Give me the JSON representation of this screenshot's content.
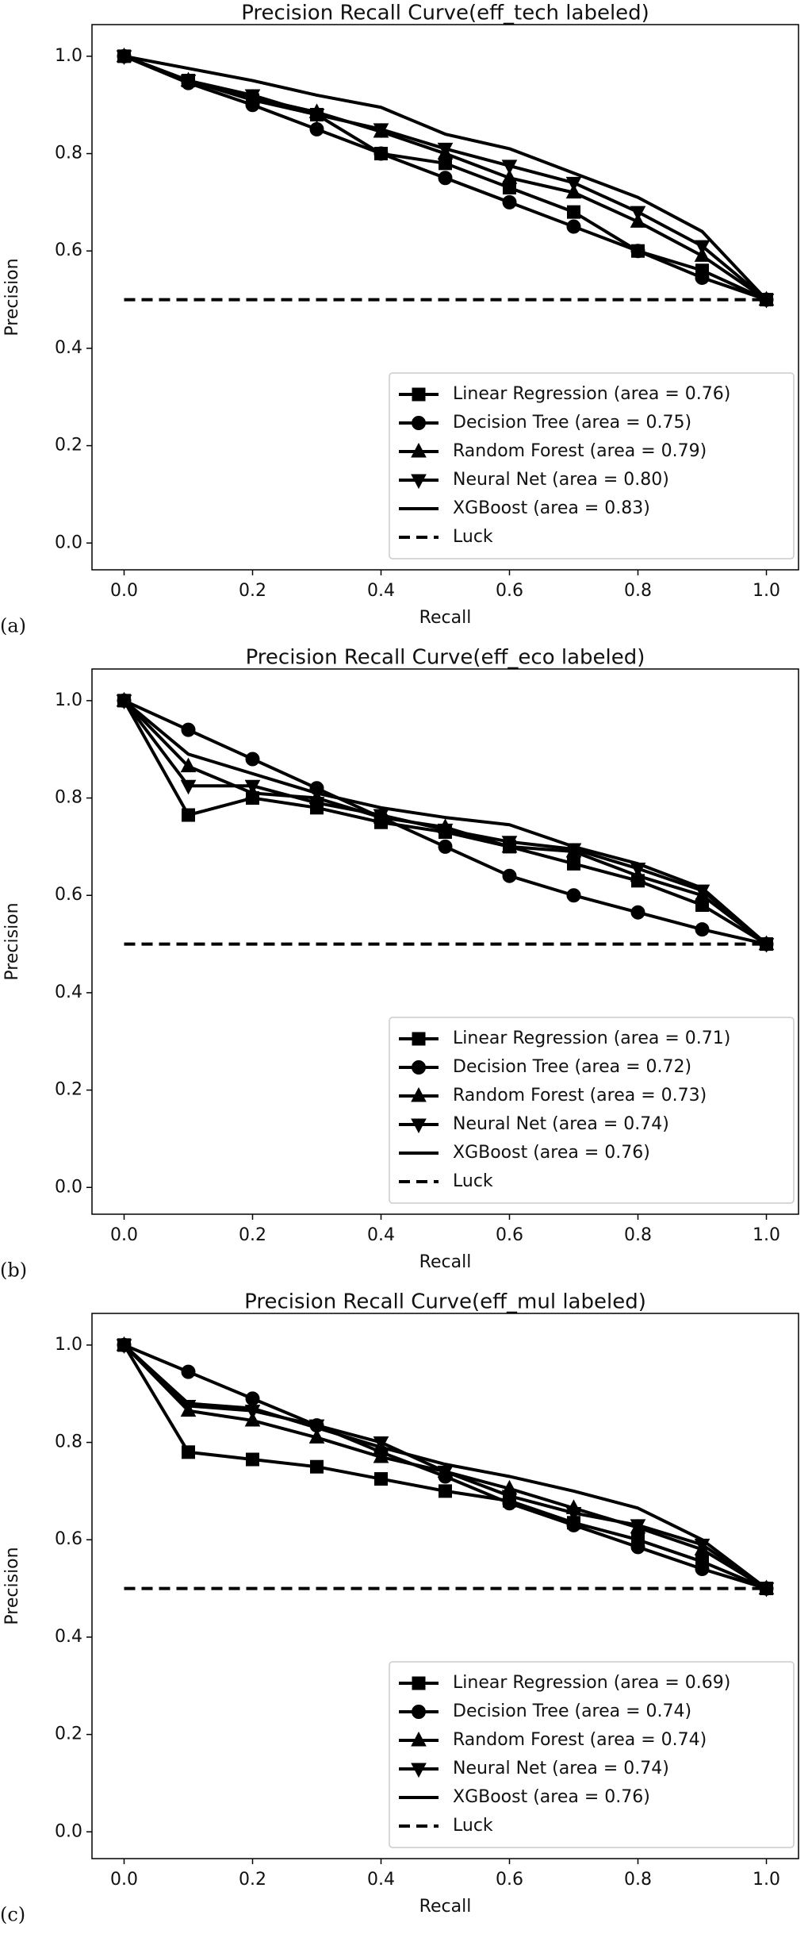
{
  "chart_data": [
    {
      "type": "line",
      "title": "Precision Recall Curve(eff_tech labeled)",
      "xlabel": "Recall",
      "ylabel": "Precision",
      "panel_label": "(a)",
      "x": [
        0,
        0.1,
        0.2,
        0.3,
        0.4,
        0.5,
        0.6,
        0.7,
        0.8,
        0.9,
        1.0
      ],
      "xlim": [
        -0.05,
        1.05
      ],
      "ylim": [
        -0.055,
        1.065
      ],
      "xticks": [
        {
          "value": 0,
          "label": "0.0"
        },
        0.2,
        0.4,
        0.6,
        0.8,
        {
          "value": 1,
          "label": "1.0"
        }
      ],
      "yticks": [
        {
          "value": 0,
          "label": "0.0"
        },
        0.2,
        0.4,
        0.6,
        0.8,
        {
          "value": 1,
          "label": "1.0"
        }
      ],
      "legend": "lower right",
      "series": [
        {
          "name": "Linear Regression (area = 0.76)",
          "color": "#000000",
          "marker": "square",
          "values": [
            1.0,
            0.95,
            0.91,
            0.88,
            0.8,
            0.78,
            0.73,
            0.68,
            0.6,
            0.56,
            0.5
          ]
        },
        {
          "name": "Decision Tree (area = 0.75)",
          "color": "#000000",
          "marker": "circle",
          "values": [
            1.0,
            0.945,
            0.9,
            0.85,
            0.8,
            0.75,
            0.7,
            0.65,
            0.6,
            0.545,
            0.5
          ]
        },
        {
          "name": "Random Forest (area = 0.79)",
          "color": "#000000",
          "marker": "triangle-up",
          "values": [
            1.0,
            0.95,
            0.915,
            0.885,
            0.845,
            0.8,
            0.75,
            0.72,
            0.66,
            0.59,
            0.5
          ]
        },
        {
          "name": "Neural Net (area = 0.80)",
          "color": "#000000",
          "marker": "triangle-down",
          "values": [
            1.0,
            0.95,
            0.92,
            0.88,
            0.85,
            0.81,
            0.775,
            0.74,
            0.68,
            0.61,
            0.5
          ]
        },
        {
          "name": "XGBoost (area = 0.83)",
          "color": "#000000",
          "values": [
            1.0,
            0.975,
            0.95,
            0.92,
            0.895,
            0.84,
            0.81,
            0.76,
            0.71,
            0.64,
            0.5
          ]
        },
        {
          "name": "Luck",
          "color": "#000000",
          "linestyle": "dashed",
          "values": [
            0.5,
            0.5,
            0.5,
            0.5,
            0.5,
            0.5,
            0.5,
            0.5,
            0.5,
            0.5,
            0.5
          ]
        }
      ]
    },
    {
      "type": "line",
      "title": "Precision Recall Curve(eff_eco labeled)",
      "xlabel": "Recall",
      "ylabel": "Precision",
      "panel_label": "(b)",
      "x": [
        0,
        0.1,
        0.2,
        0.3,
        0.4,
        0.5,
        0.6,
        0.7,
        0.8,
        0.9,
        1.0
      ],
      "xlim": [
        -0.05,
        1.05
      ],
      "ylim": [
        -0.055,
        1.065
      ],
      "xticks": [
        {
          "value": 0,
          "label": "0.0"
        },
        0.2,
        0.4,
        0.6,
        0.8,
        {
          "value": 1,
          "label": "1.0"
        }
      ],
      "yticks": [
        {
          "value": 0,
          "label": "0.0"
        },
        0.2,
        0.4,
        0.6,
        0.8,
        {
          "value": 1,
          "label": "1.0"
        }
      ],
      "legend": "lower right",
      "series": [
        {
          "name": "Linear Regression (area = 0.71)",
          "color": "#000000",
          "marker": "square",
          "values": [
            1.0,
            0.765,
            0.8,
            0.78,
            0.75,
            0.73,
            0.7,
            0.665,
            0.63,
            0.58,
            0.5
          ]
        },
        {
          "name": "Decision Tree (area = 0.72)",
          "color": "#000000",
          "marker": "circle",
          "values": [
            1.0,
            0.94,
            0.88,
            0.82,
            0.76,
            0.7,
            0.64,
            0.6,
            0.565,
            0.53,
            0.5
          ]
        },
        {
          "name": "Random Forest (area = 0.73)",
          "color": "#000000",
          "marker": "triangle-up",
          "values": [
            1.0,
            0.865,
            0.81,
            0.8,
            0.76,
            0.74,
            0.7,
            0.69,
            0.64,
            0.6,
            0.5
          ]
        },
        {
          "name": "Neural Net (area = 0.74)",
          "color": "#000000",
          "marker": "triangle-down",
          "values": [
            1.0,
            0.825,
            0.825,
            0.79,
            0.765,
            0.735,
            0.71,
            0.695,
            0.655,
            0.61,
            0.5
          ]
        },
        {
          "name": "XGBoost (area = 0.76)",
          "color": "#000000",
          "values": [
            1.0,
            0.89,
            0.85,
            0.81,
            0.78,
            0.76,
            0.745,
            0.7,
            0.665,
            0.615,
            0.5
          ]
        },
        {
          "name": "Luck",
          "color": "#000000",
          "linestyle": "dashed",
          "values": [
            0.5,
            0.5,
            0.5,
            0.5,
            0.5,
            0.5,
            0.5,
            0.5,
            0.5,
            0.5,
            0.5
          ]
        }
      ]
    },
    {
      "type": "line",
      "title": "Precision Recall Curve(eff_mul labeled)",
      "xlabel": "Recall",
      "ylabel": "Precision",
      "panel_label": "(c)",
      "x": [
        0,
        0.1,
        0.2,
        0.3,
        0.4,
        0.5,
        0.6,
        0.7,
        0.8,
        0.9,
        1.0
      ],
      "xlim": [
        -0.05,
        1.05
      ],
      "ylim": [
        -0.055,
        1.065
      ],
      "xticks": [
        {
          "value": 0,
          "label": "0.0"
        },
        0.2,
        0.4,
        0.6,
        0.8,
        {
          "value": 1,
          "label": "1.0"
        }
      ],
      "yticks": [
        {
          "value": 0,
          "label": "0.0"
        },
        0.2,
        0.4,
        0.6,
        0.8,
        {
          "value": 1,
          "label": "1.0"
        }
      ],
      "legend": "lower right",
      "series": [
        {
          "name": "Linear Regression (area = 0.69)",
          "color": "#000000",
          "marker": "square",
          "values": [
            1.0,
            0.78,
            0.765,
            0.75,
            0.725,
            0.7,
            0.68,
            0.635,
            0.6,
            0.555,
            0.5
          ]
        },
        {
          "name": "Decision Tree (area = 0.74)",
          "color": "#000000",
          "marker": "circle",
          "values": [
            1.0,
            0.945,
            0.89,
            0.835,
            0.78,
            0.73,
            0.675,
            0.63,
            0.585,
            0.54,
            0.5
          ]
        },
        {
          "name": "Random Forest (area = 0.74)",
          "color": "#000000",
          "marker": "triangle-up",
          "values": [
            1.0,
            0.865,
            0.845,
            0.81,
            0.77,
            0.74,
            0.705,
            0.665,
            0.625,
            0.58,
            0.5
          ]
        },
        {
          "name": "Neural Net (area = 0.74)",
          "color": "#000000",
          "marker": "triangle-down",
          "values": [
            1.0,
            0.875,
            0.865,
            0.835,
            0.8,
            0.74,
            0.69,
            0.655,
            0.63,
            0.59,
            0.5
          ]
        },
        {
          "name": "XGBoost (area = 0.76)",
          "color": "#000000",
          "values": [
            1.0,
            0.88,
            0.87,
            0.83,
            0.79,
            0.755,
            0.73,
            0.7,
            0.665,
            0.6,
            0.5
          ]
        },
        {
          "name": "Luck",
          "color": "#000000",
          "linestyle": "dashed",
          "values": [
            0.5,
            0.5,
            0.5,
            0.5,
            0.5,
            0.5,
            0.5,
            0.5,
            0.5,
            0.5,
            0.5
          ]
        }
      ]
    }
  ]
}
